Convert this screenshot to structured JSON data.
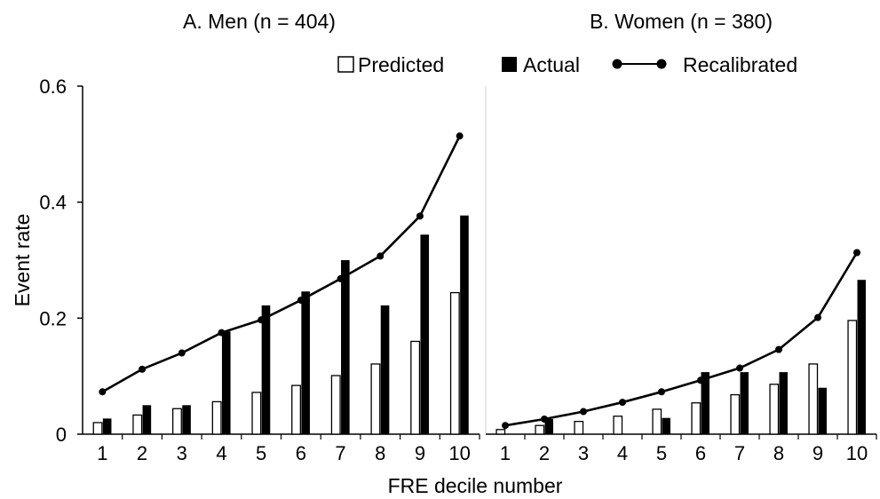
{
  "chart_data": {
    "type": "bar",
    "ylabel": "Event rate",
    "xlabel": "FRE decile number",
    "ylim": [
      0,
      0.6
    ],
    "yticks": [
      0,
      0.2,
      0.4,
      0.6
    ],
    "ytick_labels": [
      "0",
      "0.2",
      "0.4",
      "0.6"
    ],
    "grid": false,
    "legend_position": "top",
    "legend": [
      {
        "label": "Predicted",
        "style": "white-bar"
      },
      {
        "label": "Actual",
        "style": "black-bar"
      },
      {
        "label": "Recalibrated",
        "style": "line-marker"
      }
    ],
    "colors": {
      "predicted_fill": "#ffffff",
      "actual_fill": "#000000",
      "line": "#000000",
      "axis": "#000000",
      "spine": "#cfcfcf"
    },
    "categories": [
      "1",
      "2",
      "3",
      "4",
      "5",
      "6",
      "7",
      "8",
      "9",
      "10"
    ],
    "panels": [
      {
        "title": "A. Men (n = 404)",
        "series": [
          {
            "name": "Predicted",
            "kind": "bar",
            "values": [
              0.02,
              0.033,
              0.044,
              0.056,
              0.072,
              0.084,
              0.101,
              0.121,
              0.16,
              0.244
            ]
          },
          {
            "name": "Actual",
            "kind": "bar",
            "values": [
              0.027,
              0.05,
              0.05,
              0.177,
              0.222,
              0.246,
              0.3,
              0.222,
              0.344,
              0.377
            ]
          },
          {
            "name": "Recalibrated",
            "kind": "line",
            "values": [
              0.073,
              0.112,
              0.14,
              0.175,
              0.197,
              0.231,
              0.268,
              0.307,
              0.376,
              0.514
            ]
          }
        ]
      },
      {
        "title": "B. Women (n = 380)",
        "series": [
          {
            "name": "Predicted",
            "kind": "bar",
            "values": [
              0.008,
              0.015,
              0.022,
              0.031,
              0.043,
              0.054,
              0.068,
              0.086,
              0.121,
              0.196
            ]
          },
          {
            "name": "Actual",
            "kind": "bar",
            "values": [
              0.0,
              0.026,
              0.0,
              0.0,
              0.028,
              0.107,
              0.107,
              0.107,
              0.08,
              0.266
            ]
          },
          {
            "name": "Recalibrated",
            "kind": "line",
            "values": [
              0.015,
              0.026,
              0.039,
              0.055,
              0.073,
              0.093,
              0.114,
              0.146,
              0.201,
              0.313
            ]
          }
        ]
      }
    ]
  }
}
